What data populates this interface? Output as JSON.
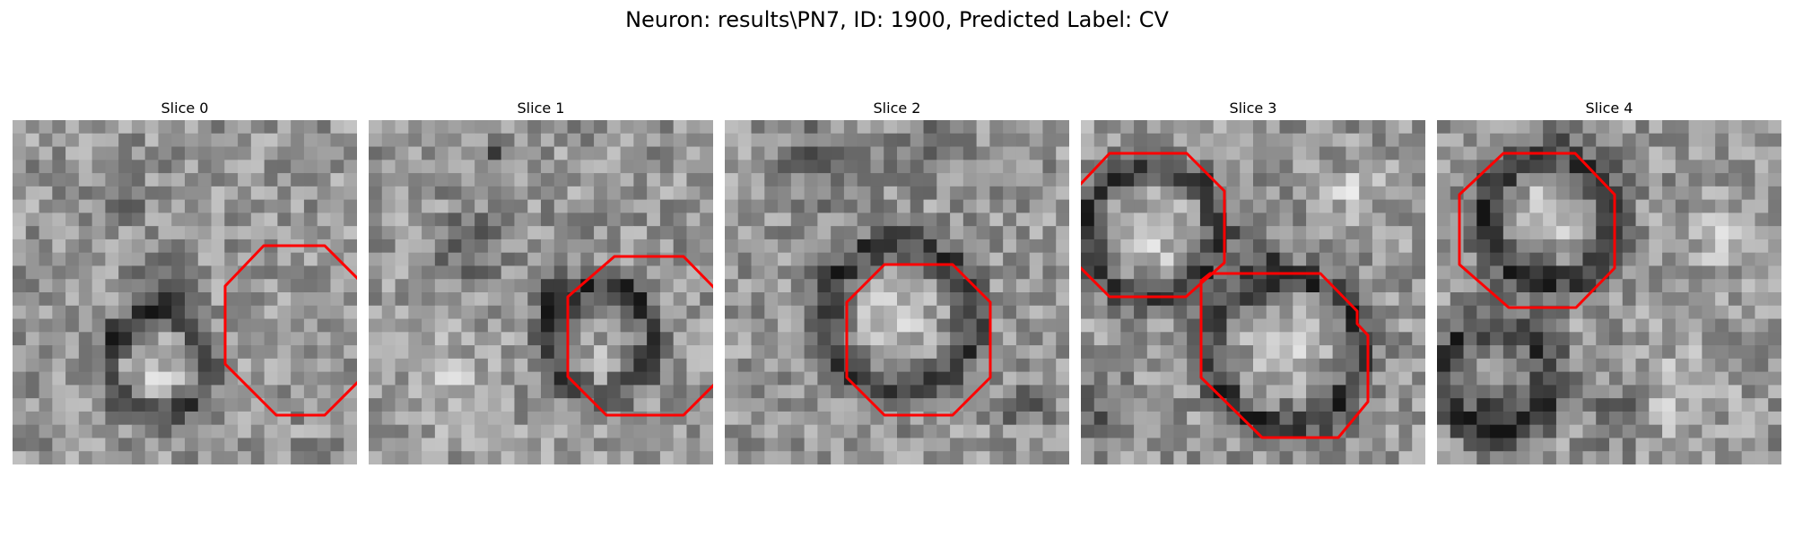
{
  "figure": {
    "title": "Neuron: results\\PN7, ID: 1900, Predicted Label: CV"
  },
  "overlay_color": "#ff0000",
  "colormap": "gray",
  "panels": [
    {
      "title": "Slice 0"
    },
    {
      "title": "Slice 1"
    },
    {
      "title": "Slice 2"
    },
    {
      "title": "Slice 3"
    },
    {
      "title": "Slice 4"
    }
  ]
}
